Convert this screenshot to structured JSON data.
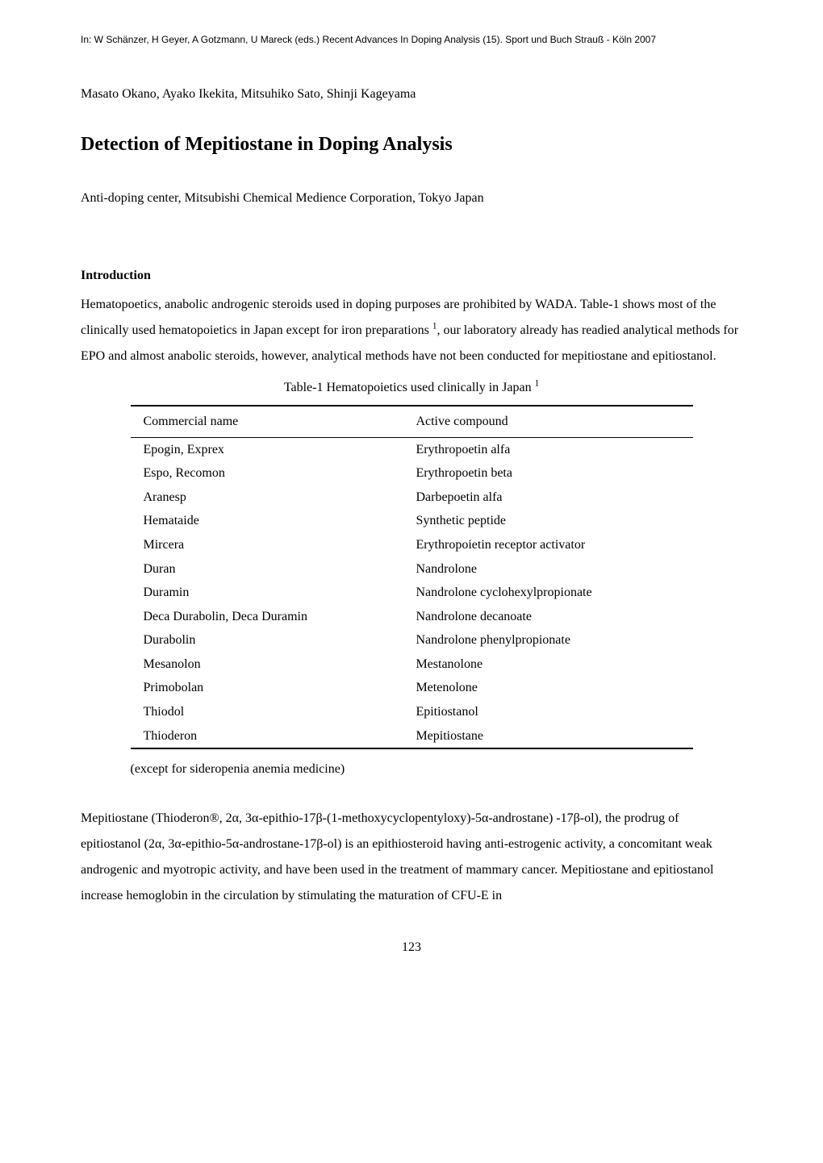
{
  "header_citation": "In: W Schänzer, H Geyer, A Gotzmann, U Mareck (eds.) Recent Advances In Doping Analysis (15). Sport und Buch Strauß - Köln 2007",
  "authors": "Masato Okano, Ayako Ikekita, Mitsuhiko Sato, Shinji Kageyama",
  "title": "Detection of Mepitiostane in Doping Analysis",
  "affiliation": "Anti-doping center, Mitsubishi Chemical Medience Corporation, Tokyo Japan",
  "intro_heading": "Introduction",
  "intro_p1_pre": "Hematopoetics, anabolic androgenic steroids used in doping purposes are prohibited by WADA. Table-1 shows most of the clinically used hematopoietics in Japan except for iron preparations",
  "intro_p1_post": ", our laboratory already has readied analytical methods for EPO and almost anabolic steroids, however, analytical methods have not been conducted for mepitiostane and epitiostanol.",
  "sup1": "1",
  "table_caption_pre": "Table-1 Hematopoietics used clinically in Japan",
  "table": {
    "col1_header": "Commercial name",
    "col2_header": "Active compound",
    "rows": [
      [
        "Epogin, Exprex",
        "Erythropoetin alfa"
      ],
      [
        "Espo, Recomon",
        "Erythropoetin beta"
      ],
      [
        "Aranesp",
        "Darbepoetin alfa"
      ],
      [
        "Hemataide",
        "Synthetic peptide"
      ],
      [
        "Mircera",
        "Erythropoietin receptor activator"
      ],
      [
        "Duran",
        "Nandrolone"
      ],
      [
        "Duramin",
        "Nandrolone cyclohexylpropionate"
      ],
      [
        "Deca Durabolin, Deca Duramin",
        "Nandrolone decanoate"
      ],
      [
        "Durabolin",
        "Nandrolone phenylpropionate"
      ],
      [
        "Mesanolon",
        "Mestanolone"
      ],
      [
        "Primobolan",
        "Metenolone"
      ],
      [
        "Thiodol",
        "Epitiostanol"
      ],
      [
        "Thioderon",
        "Mepitiostane"
      ]
    ]
  },
  "table_note": "(except for sideropenia anemia medicine)",
  "para2": "Mepitiostane (Thioderon®, 2α, 3α-epithio-17β-(1-methoxycyclopentyloxy)-5α-androstane) -17β-ol), the prodrug of epitiostanol (2α, 3α-epithio-5α-androstane-17β-ol) is an epithiosteroid having anti-estrogenic activity, a concomitant weak androgenic and myotropic activity, and have been used in the treatment of mammary cancer. Mepitiostane and epitiostanol increase hemoglobin in the circulation by stimulating the maturation of CFU-E in",
  "page_number": "123",
  "colors": {
    "text": "#000000",
    "background": "#ffffff",
    "rule": "#000000"
  },
  "fonts": {
    "body_family": "Times New Roman",
    "header_family": "Arial",
    "title_size_pt": 18,
    "body_size_pt": 12,
    "header_size_pt": 9
  }
}
